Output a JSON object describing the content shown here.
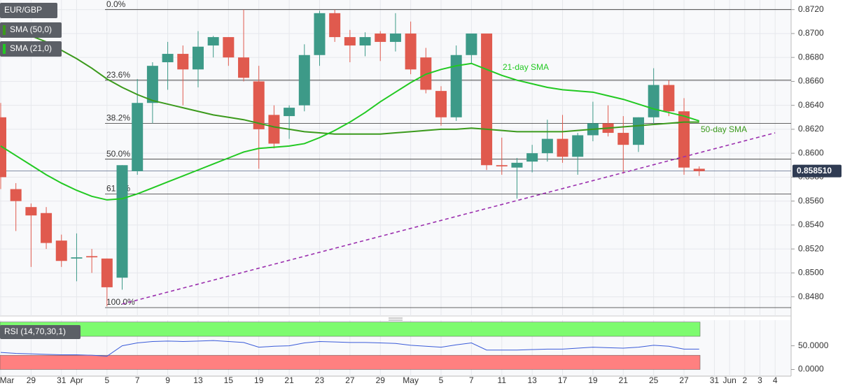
{
  "chart_data": [
    {
      "type": "candlestick",
      "title": "EUR/GBP",
      "categories": [
        "Mar",
        null,
        "29",
        null,
        "31",
        "Apr",
        null,
        "5",
        null,
        "7",
        null,
        "9",
        null,
        "13",
        null,
        "15",
        null,
        "19",
        null,
        "21",
        null,
        "23",
        null,
        "27",
        null,
        "29",
        null,
        "May",
        null,
        "5",
        null,
        "7",
        null,
        "11",
        null,
        "13",
        null,
        "17",
        null,
        "19",
        null,
        "21",
        null,
        "25",
        null,
        "27",
        null,
        "31",
        "Jun",
        "2",
        "3",
        "4"
      ],
      "open": [
        0.863,
        0.857,
        0.8555,
        0.855,
        0.8527,
        0.8512,
        0.8514,
        0.8512,
        0.8496,
        0.8585,
        0.8642,
        0.8676,
        0.8683,
        0.867,
        0.869,
        0.8697,
        0.868,
        0.866,
        0.8632,
        0.8631,
        0.864,
        0.8682,
        0.8717,
        0.8697,
        0.869,
        0.87,
        0.8693,
        0.87,
        0.868,
        0.8652,
        0.863,
        0.8682,
        0.87,
        0.859,
        0.8588,
        0.8593,
        0.86,
        0.8612,
        0.8597,
        0.8615,
        0.8625,
        0.8617,
        0.8607,
        0.863,
        0.8657,
        0.8635,
        0.8587,
        null,
        null,
        null,
        null,
        null
      ],
      "high": [
        0.8642,
        0.8575,
        0.8558,
        0.8555,
        0.8532,
        0.8533,
        0.852,
        0.8512,
        0.859,
        0.8662,
        0.8676,
        0.8693,
        0.869,
        0.8702,
        0.8698,
        0.8697,
        0.872,
        0.8673,
        0.864,
        0.864,
        0.8691,
        0.8719,
        0.872,
        0.8703,
        0.8701,
        0.8702,
        0.8717,
        0.871,
        0.8688,
        0.8656,
        0.869,
        0.87,
        0.87,
        0.8613,
        0.8596,
        0.8607,
        0.8628,
        0.8632,
        0.8617,
        0.8643,
        0.864,
        0.8631,
        0.863,
        0.8671,
        0.8661,
        0.8646,
        0.8589,
        null,
        null,
        null,
        null,
        null
      ],
      "low": [
        0.857,
        0.8535,
        0.8505,
        0.852,
        0.8505,
        0.8493,
        0.85,
        0.8472,
        0.8486,
        0.8582,
        0.8625,
        0.8653,
        0.864,
        0.8655,
        0.868,
        0.8673,
        0.866,
        0.8587,
        0.8604,
        0.8612,
        0.8635,
        0.8673,
        0.8693,
        0.8676,
        0.8681,
        0.8677,
        0.8685,
        0.8666,
        0.865,
        0.8623,
        0.8627,
        0.8675,
        0.8586,
        0.8582,
        0.8562,
        0.8584,
        0.8593,
        0.8592,
        0.8582,
        0.861,
        0.8614,
        0.8583,
        0.8601,
        0.8625,
        0.8631,
        0.8582,
        0.8581,
        null,
        null,
        null,
        null,
        null
      ],
      "close": [
        0.858,
        0.856,
        0.8548,
        0.8525,
        0.851,
        0.8513,
        0.8513,
        0.8488,
        0.859,
        0.8642,
        0.8673,
        0.8683,
        0.867,
        0.8689,
        0.8697,
        0.868,
        0.8663,
        0.862,
        0.8608,
        0.8638,
        0.8682,
        0.8717,
        0.8697,
        0.869,
        0.8697,
        0.8693,
        0.87,
        0.867,
        0.8653,
        0.863,
        0.8682,
        0.87,
        0.859,
        0.8589,
        0.8592,
        0.86,
        0.8612,
        0.8597,
        0.8615,
        0.8625,
        0.8617,
        0.8607,
        0.863,
        0.8657,
        0.8635,
        0.8588,
        0.8585,
        null,
        null,
        null,
        null,
        null
      ],
      "up_color": "#3d9a88",
      "down_color": "#e05a4e",
      "ylim": [
        0.8464,
        0.8728
      ],
      "yticks": [
        {
          "value": 0.848,
          "label": "0.8480"
        },
        {
          "value": 0.85,
          "label": "0.8500"
        },
        {
          "value": 0.852,
          "label": "0.8520"
        },
        {
          "value": 0.854,
          "label": "0.8540"
        },
        {
          "value": 0.856,
          "label": "0.8560"
        },
        {
          "value": 0.858,
          "label": "0.8580"
        },
        {
          "value": 0.86,
          "label": "0.8600"
        },
        {
          "value": 0.862,
          "label": "0.8620"
        },
        {
          "value": 0.864,
          "label": "0.8640"
        },
        {
          "value": 0.866,
          "label": "0.8660"
        },
        {
          "value": 0.868,
          "label": "0.8680"
        },
        {
          "value": 0.87,
          "label": "0.8700"
        },
        {
          "value": 0.872,
          "label": "0.8720"
        }
      ],
      "grid": true,
      "series": [
        {
          "name": "SMA (50,0)",
          "color": "#3b9a1c",
          "values": [
            0.8708,
            0.8703,
            0.8698,
            0.8693,
            0.8686,
            0.8679,
            0.8671,
            0.8662,
            0.8655,
            0.8649,
            0.8644,
            0.8641,
            0.8638,
            0.8635,
            0.8632,
            0.863,
            0.8628,
            0.8625,
            0.8622,
            0.862,
            0.8618,
            0.8617,
            0.8616,
            0.8616,
            0.8616,
            0.8616,
            0.8617,
            0.8618,
            0.8619,
            0.862,
            0.862,
            0.8621,
            0.862,
            0.8619,
            0.8618,
            0.8618,
            0.8618,
            0.8618,
            0.8619,
            0.862,
            0.8621,
            0.8622,
            0.8623,
            0.8624,
            0.8625,
            0.8626,
            0.8626,
            null,
            null,
            null,
            null,
            null
          ]
        },
        {
          "name": "SMA (21,0)",
          "color": "#22c922",
          "values": [
            0.8606,
            0.8598,
            0.859,
            0.8582,
            0.8575,
            0.8569,
            0.8564,
            0.8561,
            0.8562,
            0.8566,
            0.8571,
            0.8576,
            0.8581,
            0.8586,
            0.8591,
            0.8596,
            0.8601,
            0.8604,
            0.8605,
            0.8606,
            0.8608,
            0.8613,
            0.8619,
            0.8626,
            0.8634,
            0.8643,
            0.8651,
            0.8659,
            0.8666,
            0.867,
            0.8673,
            0.8675,
            0.867,
            0.8665,
            0.8661,
            0.8658,
            0.8655,
            0.8653,
            0.8652,
            0.8651,
            0.8648,
            0.8645,
            0.8641,
            0.8637,
            0.8634,
            0.8631,
            0.8627,
            null,
            null,
            null,
            null,
            null
          ]
        }
      ],
      "annotations": [
        "50-day SMA",
        "21-day SMA"
      ],
      "fib_levels": [
        {
          "label": "0.0%",
          "value": 0.872
        },
        {
          "label": "23.6%",
          "value": 0.8661
        },
        {
          "label": "38.2%",
          "value": 0.8625
        },
        {
          "label": "50.0%",
          "value": 0.8595
        },
        {
          "label": "61.8%",
          "value": 0.8566
        },
        {
          "label": "100.0%",
          "value": 0.8471
        }
      ],
      "trendline": {
        "color": "#9b2fae",
        "start_index": 8,
        "start": 0.8474,
        "end_index": 51,
        "end": 0.8617
      },
      "last_price": {
        "value": 0.85851,
        "label": "0.858510"
      }
    },
    {
      "type": "line",
      "title": "RSI (14,70,30,1)",
      "color": "#3a5bd9",
      "values": [
        36,
        34,
        33,
        32,
        31,
        31,
        30,
        28,
        50,
        56,
        59,
        60,
        59,
        60,
        61,
        59,
        57,
        47,
        49,
        50,
        56,
        59,
        58,
        57,
        57,
        56,
        55,
        51,
        49,
        47,
        52,
        56,
        41,
        41,
        41,
        42,
        43,
        43,
        45,
        47,
        46,
        45,
        47,
        51,
        49,
        43,
        43,
        null,
        null,
        null,
        null,
        null
      ],
      "ylim": [
        -14,
        104
      ],
      "yticks": [
        {
          "value": 0,
          "label": "0.0000"
        },
        {
          "value": 50,
          "label": "50.0000"
        }
      ],
      "zones": [
        {
          "from": 70,
          "to": 100,
          "color": "#7dfb6f"
        },
        {
          "from": 0,
          "to": 30,
          "color": "#ff8080"
        }
      ]
    }
  ]
}
